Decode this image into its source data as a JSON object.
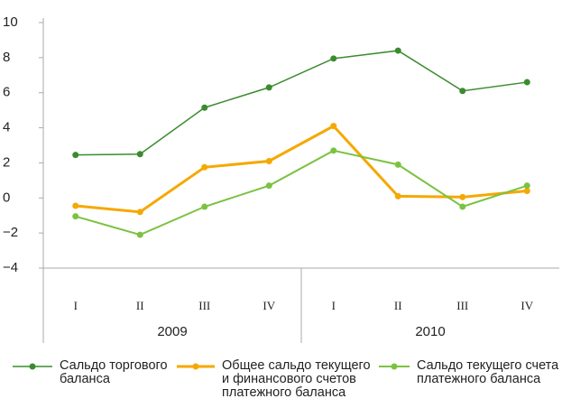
{
  "chart_data": {
    "type": "line",
    "categories": [
      "I",
      "II",
      "III",
      "IV",
      "I",
      "II",
      "III",
      "IV"
    ],
    "x_groups": [
      {
        "name": "2009",
        "size": 4
      },
      {
        "name": "2010",
        "size": 4
      }
    ],
    "series": [
      {
        "name": "Сальдо торгового\nбаланса",
        "color": "#3b8b2f",
        "width": 1.5,
        "values": [
          2.45,
          2.5,
          5.15,
          6.3,
          7.95,
          8.4,
          6.1,
          6.6
        ]
      },
      {
        "name": "Общее сальдо текущего\nи финансового счетов\nплатежного баланса",
        "color": "#f5a800",
        "width": 3,
        "values": [
          -0.45,
          -0.8,
          1.75,
          2.1,
          4.1,
          0.1,
          0.05,
          0.4
        ]
      },
      {
        "name": "Сальдо текущего счета\nплатежного баланса",
        "color": "#7cc242",
        "width": 2,
        "values": [
          -1.05,
          -2.1,
          -0.5,
          0.7,
          2.7,
          1.9,
          -0.5,
          0.7
        ]
      }
    ],
    "ylim": [
      -4,
      10
    ],
    "yticks": [
      {
        "value": -4,
        "label": "−4"
      },
      {
        "value": -2,
        "label": "−2"
      },
      0,
      2,
      4,
      6,
      8,
      10
    ]
  }
}
